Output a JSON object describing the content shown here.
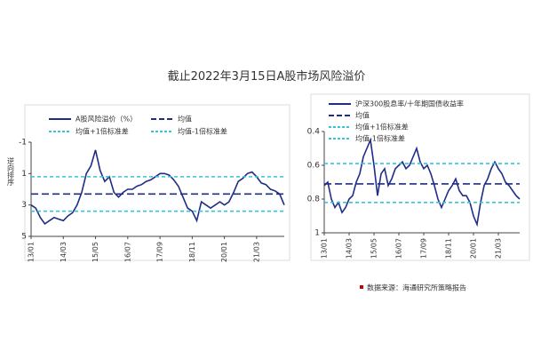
{
  "title": "截止2022年3月15日A股市场风险溢价",
  "source": "数据来源：海通研究所策略报告",
  "chart_data": [
    {
      "type": "line",
      "ylabel": "逆向排序",
      "categories": [
        "13/01",
        null,
        null,
        null,
        null,
        null,
        null,
        "14/03",
        null,
        null,
        null,
        null,
        null,
        null,
        "15/05",
        null,
        null,
        null,
        null,
        null,
        null,
        "16/07",
        null,
        null,
        null,
        null,
        null,
        null,
        "17/09",
        null,
        null,
        null,
        null,
        null,
        null,
        "18/11",
        null,
        null,
        null,
        null,
        null,
        null,
        "20/01",
        null,
        null,
        null,
        null,
        null,
        null,
        "21/03",
        null,
        null,
        null,
        null,
        null,
        null
      ],
      "series": [
        {
          "name": "A股风险溢价（%）",
          "color": "#1f2d86",
          "values": [
            3,
            3.2,
            3.8,
            4.2,
            4,
            3.8,
            3.9,
            4,
            3.7,
            3.5,
            3,
            2.2,
            1,
            0.5,
            -0.5,
            0.8,
            1.5,
            1.2,
            2.2,
            2.5,
            2.2,
            2,
            2,
            1.8,
            1.7,
            1.5,
            1.4,
            1.2,
            1,
            1,
            1.1,
            1.4,
            1.8,
            2.5,
            3.2,
            3.4,
            4,
            2.8,
            3,
            3.2,
            3,
            2.8,
            3,
            2.8,
            2.2,
            1.5,
            1.3,
            1,
            0.9,
            1.2,
            1.6,
            1.7,
            2,
            2.1,
            2.3,
            3
          ]
        }
      ],
      "reference_lines": [
        {
          "name": "均值",
          "value": 2.3,
          "color": "#1f2d86"
        },
        {
          "name": "均值+1倍标准差",
          "value": 3.4,
          "color": "#35c4d8"
        },
        {
          "name": "均值-1倍标准差",
          "value": 1.2,
          "color": "#35c4d8"
        }
      ],
      "ylim": [
        -1,
        5
      ],
      "yticks": [
        -1,
        1,
        3,
        5
      ],
      "inverted": true
    },
    {
      "type": "line",
      "categories": [
        "13/01",
        null,
        null,
        null,
        null,
        null,
        null,
        "14/03",
        null,
        null,
        null,
        null,
        null,
        null,
        "15/05",
        null,
        null,
        null,
        null,
        null,
        null,
        "16/07",
        null,
        null,
        null,
        null,
        null,
        null,
        "17/09",
        null,
        null,
        null,
        null,
        null,
        null,
        "18/11",
        null,
        null,
        null,
        null,
        null,
        null,
        "20/01",
        null,
        null,
        null,
        null,
        null,
        null,
        "21/03",
        null,
        null,
        null,
        null,
        null,
        null
      ],
      "series": [
        {
          "name": "沪深300股息率/十年期国债收益率",
          "color": "#1f2d86",
          "values": [
            0.72,
            0.7,
            0.8,
            0.85,
            0.82,
            0.88,
            0.85,
            0.8,
            0.78,
            0.7,
            0.65,
            0.55,
            0.5,
            0.45,
            0.6,
            0.78,
            0.65,
            0.62,
            0.72,
            0.68,
            0.62,
            0.6,
            0.58,
            0.62,
            0.6,
            0.55,
            0.5,
            0.58,
            0.62,
            0.6,
            0.65,
            0.72,
            0.8,
            0.85,
            0.8,
            0.75,
            0.72,
            0.68,
            0.75,
            0.78,
            0.78,
            0.82,
            0.9,
            0.95,
            0.82,
            0.72,
            0.68,
            0.62,
            0.58,
            0.62,
            0.65,
            0.7,
            0.72,
            0.75,
            0.78,
            0.8
          ]
        }
      ],
      "reference_lines": [
        {
          "name": "均值",
          "value": 0.71,
          "color": "#1f2d86"
        },
        {
          "name": "均值+1倍标准差",
          "value": 0.82,
          "color": "#35c4d8"
        },
        {
          "name": "均值-1倍标准差",
          "value": 0.59,
          "color": "#35c4d8"
        }
      ],
      "ylim": [
        0.4,
        1
      ],
      "yticks": [
        0.4,
        0.6,
        0.8,
        1
      ],
      "inverted": true
    }
  ]
}
